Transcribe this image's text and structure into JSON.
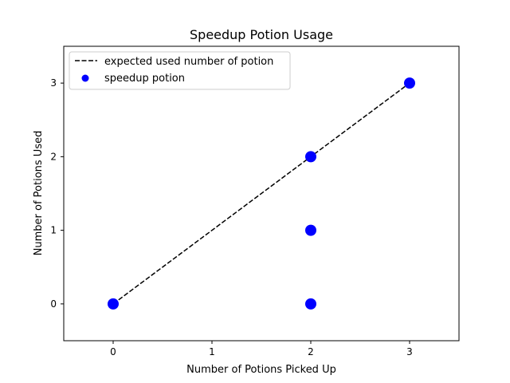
{
  "chart_data": {
    "type": "scatter",
    "title": "Speedup Potion Usage",
    "xlabel": "Number of Potions Picked Up",
    "ylabel": "Number of Potions Used",
    "xlim": [
      -0.5,
      3.5
    ],
    "ylim": [
      -0.5,
      3.5
    ],
    "xticks": [
      0,
      1,
      2,
      3
    ],
    "yticks": [
      0,
      1,
      2,
      3
    ],
    "xtick_labels": [
      "0",
      "1",
      "2",
      "3"
    ],
    "ytick_labels": [
      "0",
      "1",
      "2",
      "3"
    ],
    "grid": false,
    "legend_position": "top-left",
    "series": [
      {
        "name": "expected used number of potion",
        "kind": "line",
        "style": "dashed",
        "color": "#000000",
        "x": [
          0,
          3
        ],
        "y": [
          0,
          3
        ]
      },
      {
        "name": "speedup potion",
        "kind": "scatter",
        "color": "#0000ff",
        "x": [
          0,
          2,
          2,
          2,
          3
        ],
        "y": [
          0,
          0,
          1,
          2,
          3
        ]
      }
    ]
  }
}
